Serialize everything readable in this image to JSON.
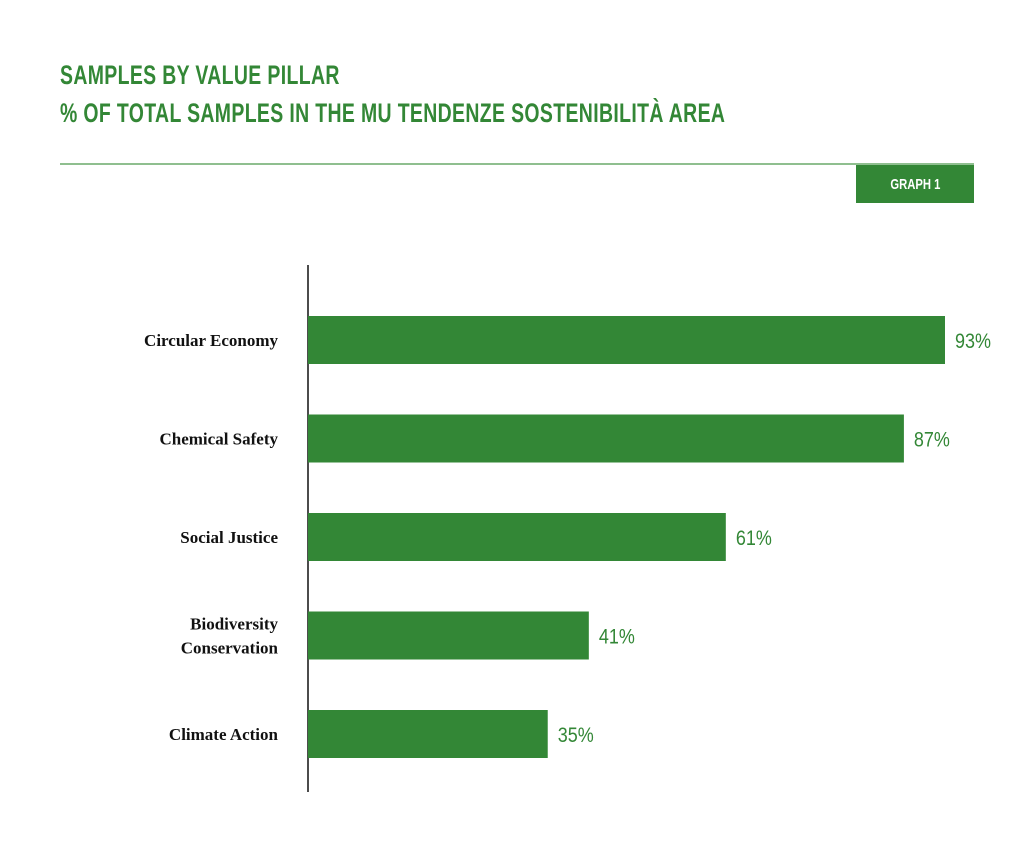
{
  "header": {
    "title_line1": "SAMPLES BY VALUE PILLAR",
    "title_line2": "% OF TOTAL SAMPLES IN THE MU TENDENZE SOSTENIBILITÀ AREA",
    "badge": "GRAPH 1"
  },
  "colors": {
    "accent": "#338736",
    "rule": "#8fbf8f",
    "axis": "#111111"
  },
  "chart_data": {
    "type": "bar",
    "orientation": "horizontal",
    "title": "SAMPLES BY VALUE PILLAR",
    "subtitle": "% OF TOTAL SAMPLES IN THE MU TENDENZE SOSTENIBILITÀ AREA",
    "categories": [
      [
        "Circular Economy"
      ],
      [
        "Chemical Safety"
      ],
      [
        "Social Justice"
      ],
      [
        "Biodiversity",
        "Conservation"
      ],
      [
        "Climate Action"
      ]
    ],
    "values": [
      93,
      87,
      61,
      41,
      35
    ],
    "value_labels": [
      "93%",
      "87%",
      "61%",
      "41%",
      "35%"
    ],
    "unit": "%",
    "xlim": [
      0,
      100
    ],
    "grid": false,
    "legend": "none"
  }
}
